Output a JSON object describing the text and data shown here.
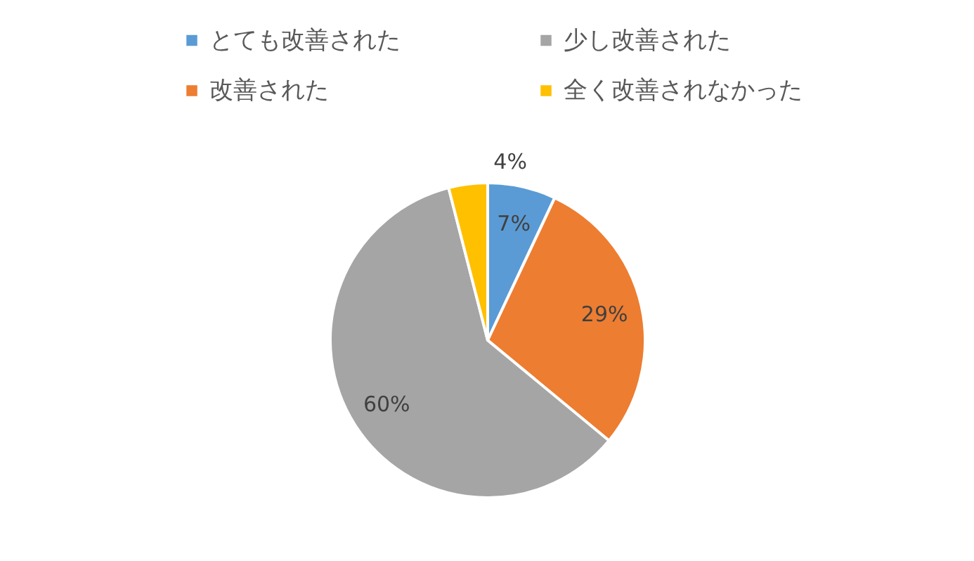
{
  "chart_data": {
    "type": "pie",
    "categories": [
      "とても改善された",
      "改善された",
      "少し改善された",
      "全く改善されなかった"
    ],
    "values": [
      7,
      29,
      60,
      4
    ],
    "value_labels": [
      "7%",
      "29%",
      "60%",
      "4%"
    ],
    "colors": [
      "#5b9bd5",
      "#ed7d31",
      "#a5a5a5",
      "#ffc000"
    ],
    "legend": "top"
  }
}
